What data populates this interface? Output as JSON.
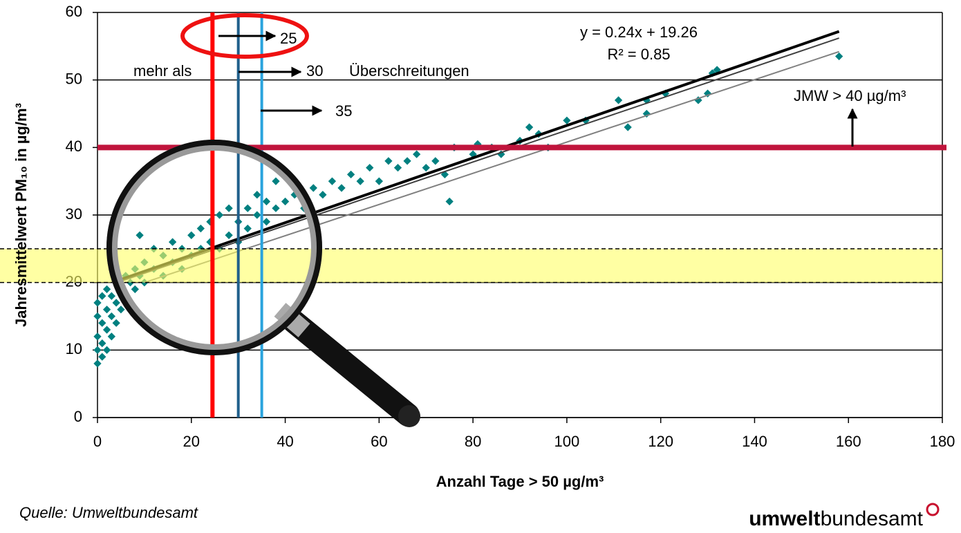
{
  "chart_data": {
    "type": "scatter",
    "x_label": "Anzahl Tage > 50 µg/m³",
    "y_label": "Jahresmittelwert PM₁₀ in µg/m³",
    "xlim": [
      0,
      180
    ],
    "xticks": [
      0,
      20,
      40,
      60,
      80,
      100,
      120,
      140,
      160,
      180
    ],
    "ylim": [
      0,
      60
    ],
    "yticks": [
      0,
      10,
      20,
      30,
      40,
      50,
      60
    ],
    "grid": true,
    "color": "#008080",
    "x": [
      0,
      0,
      0,
      0,
      0,
      1,
      1,
      1,
      1,
      2,
      2,
      2,
      2,
      3,
      3,
      3,
      4,
      4,
      4,
      5,
      5,
      6,
      6,
      7,
      7,
      8,
      8,
      9,
      9,
      10,
      10,
      12,
      12,
      14,
      14,
      16,
      16,
      18,
      18,
      20,
      20,
      22,
      22,
      24,
      24,
      26,
      26,
      28,
      28,
      30,
      30,
      32,
      32,
      34,
      34,
      36,
      36,
      38,
      38,
      40,
      42,
      44,
      46,
      48,
      50,
      52,
      54,
      56,
      58,
      60,
      62,
      64,
      66,
      68,
      70,
      72,
      74,
      75,
      76,
      80,
      81,
      84,
      86,
      90,
      92,
      94,
      96,
      100,
      104,
      111,
      113,
      117,
      117,
      121,
      128,
      130,
      131,
      132,
      158
    ],
    "values": [
      8,
      10,
      12,
      15,
      17,
      9,
      11,
      14,
      18,
      10,
      13,
      16,
      19,
      12,
      15,
      18,
      14,
      17,
      20,
      16,
      19,
      18,
      21,
      17,
      20,
      19,
      22,
      21,
      27,
      20,
      23,
      22,
      25,
      21,
      24,
      23,
      26,
      22,
      25,
      24,
      27,
      25,
      28,
      26,
      29,
      25,
      30,
      27,
      31,
      26,
      29,
      28,
      31,
      30,
      33,
      29,
      32,
      31,
      35,
      32,
      33,
      31,
      34,
      33,
      35,
      34,
      36,
      35,
      37,
      35,
      38,
      37,
      38,
      39,
      37,
      38,
      36,
      32,
      40,
      39,
      40.5,
      40,
      39,
      41,
      43,
      42,
      40,
      44,
      44,
      47,
      43,
      47,
      45,
      48,
      47,
      48,
      51,
      51.5,
      53.5
    ],
    "fit_lines": [
      {
        "x": [
          5,
          158
        ],
        "y": [
          20.46,
          57.18
        ],
        "color": "#000000"
      },
      {
        "x": [
          5,
          158
        ],
        "y": [
          20.2,
          56.2
        ],
        "color": "#404040"
      },
      {
        "x": [
          10,
          158
        ],
        "y": [
          20.0,
          54.2
        ],
        "color": "#808080"
      }
    ],
    "vlines": [
      {
        "x": 24.5,
        "color": "#ff0000"
      },
      {
        "x": 30,
        "color": "#1f5f8b"
      },
      {
        "x": 35,
        "color": "#29a3dd"
      }
    ],
    "hline": {
      "y": 40,
      "color": "#c0143c"
    },
    "band": [
      20,
      25
    ],
    "annotations": {
      "equation": "y = 0.24x + 19.26",
      "r2": "R² = 0.85",
      "more_than": "mehr als",
      "t25": "25",
      "t30": "30",
      "t35": "35",
      "exceed": "Überschreitungen",
      "jmw": "JMW > 40 µg/m³"
    },
    "source": "Quelle: Umweltbundesamt",
    "logo_bold": "umwelt",
    "logo_rest": "bundesamt"
  }
}
